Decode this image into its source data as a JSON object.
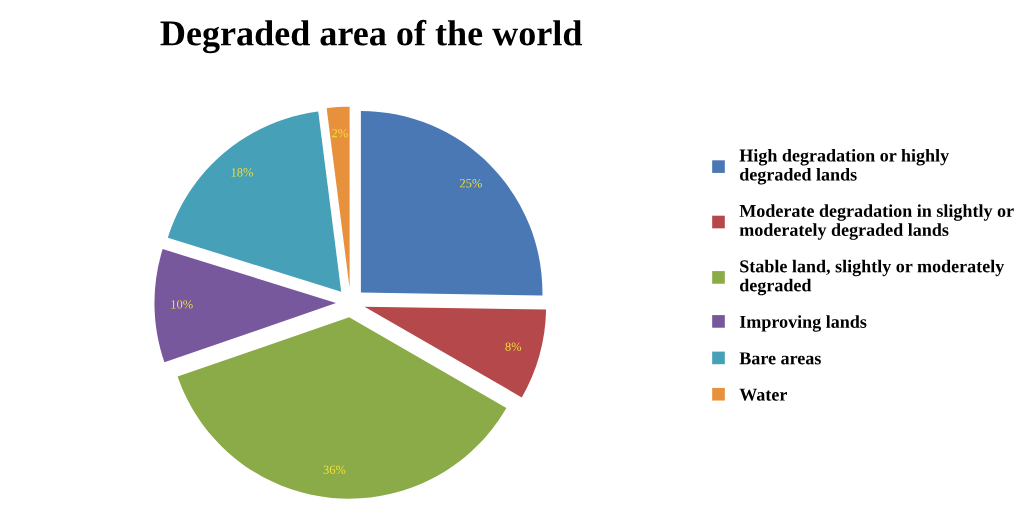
{
  "chart_data": {
    "type": "pie",
    "title": "Degraded area of the world",
    "categories": [
      "High degradation or highly\ndegraded lands",
      "Moderate degradation in slightly or\nmoderately degraded lands",
      "Stable land, slightly or moderately\ndegraded",
      "Improving lands",
      "Bare areas",
      "Water"
    ],
    "values": [
      25,
      8,
      36,
      10,
      18,
      2
    ],
    "value_labels": [
      "25%",
      "8%",
      "36%",
      "10%",
      "18%",
      "2%"
    ],
    "colors": [
      "#4a78b4",
      "#b5484a",
      "#8bab48",
      "#78589c",
      "#46a0b8",
      "#e8913c"
    ],
    "legend": "right"
  }
}
